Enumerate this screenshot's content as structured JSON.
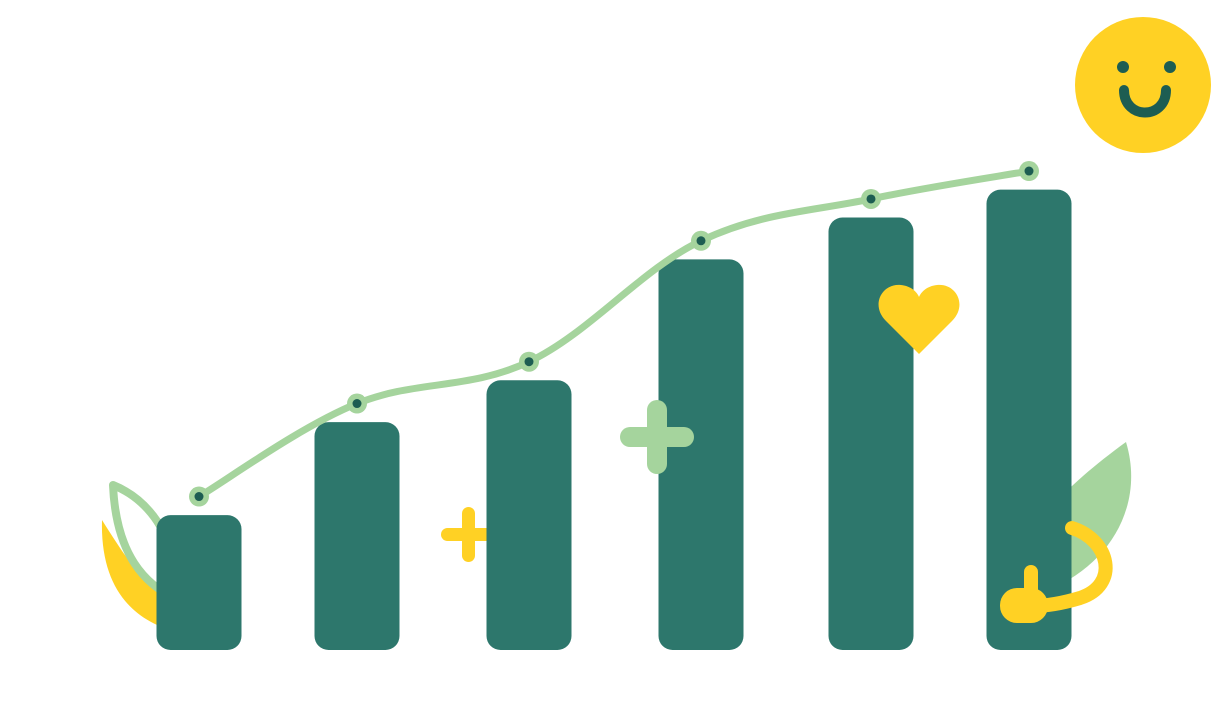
{
  "chart_data": {
    "type": "bar",
    "title": "",
    "xlabel": "",
    "ylabel": "",
    "grid": false,
    "ylim": [
      0,
      100
    ],
    "categories": [
      "",
      "",
      "",
      "",
      "",
      ""
    ],
    "series": [
      {
        "values": [
          29,
          49,
          58,
          84,
          93,
          99
        ]
      },
      {
        "values": [
          33,
          53,
          62,
          88,
          97,
          103
        ]
      }
    ],
    "series_types": [
      "bar",
      "line"
    ]
  },
  "colors": {
    "bar": "#2d776c",
    "line": "#a5d49d",
    "marker_dot": "#1d5d52",
    "accent_yellow": "#ffd124",
    "accent_green": "#a5d49d",
    "face": "#1d5d52",
    "background": "#ffffff"
  },
  "decorations": {
    "icons": [
      "smiley-face-icon",
      "heart-icon",
      "plus-icon",
      "leaf-icon",
      "thumbs-up-icon"
    ]
  }
}
